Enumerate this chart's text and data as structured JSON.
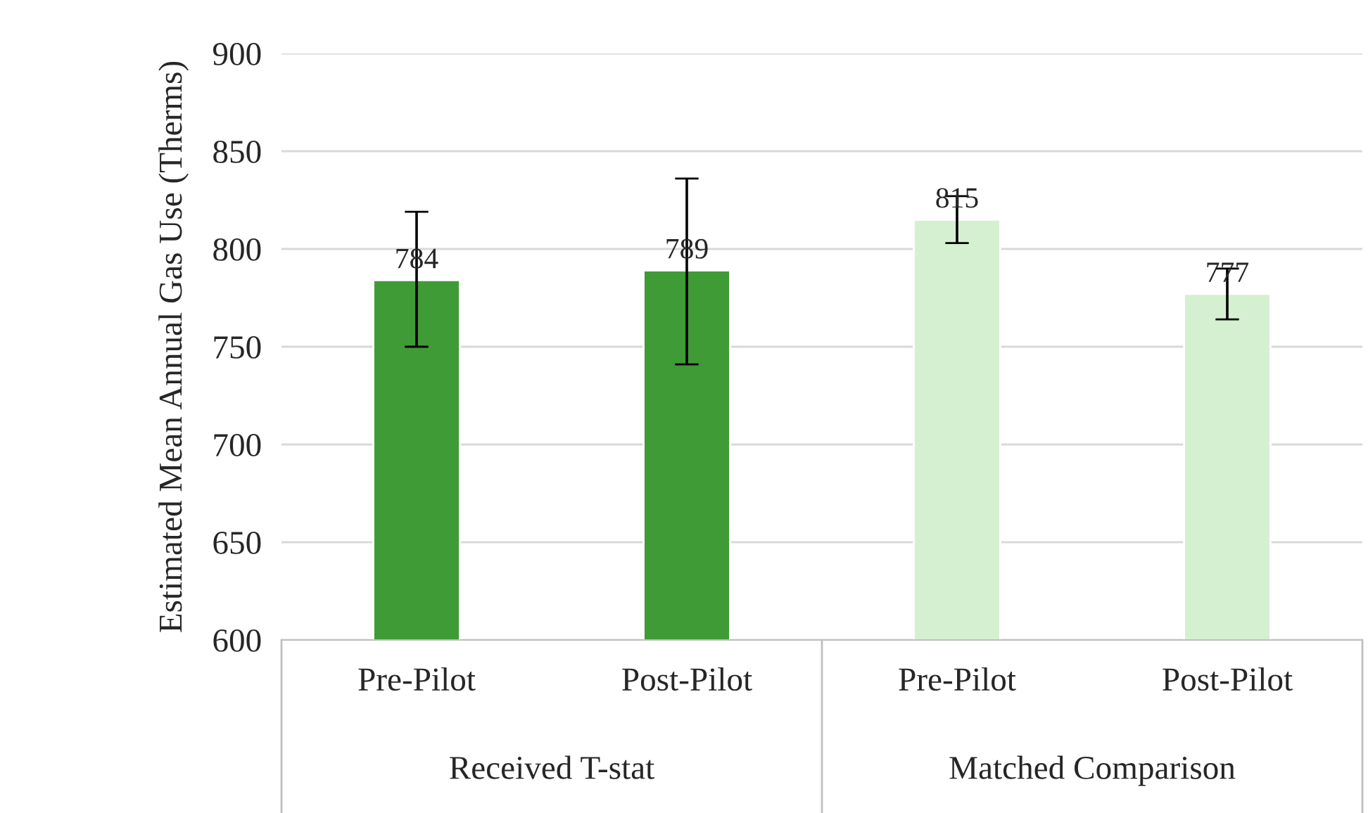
{
  "chart_data": {
    "type": "bar",
    "ylabel": "Estimated Mean Annual Gas Use (Therms)",
    "categories": [
      "Pre-Pilot",
      "Post-Pilot",
      "Pre-Pilot",
      "Post-Pilot"
    ],
    "values": [
      784,
      789,
      815,
      777
    ],
    "colors": [
      "#3f9b35",
      "#3f9b35",
      "#d5f0d0",
      "#d5f0d0"
    ],
    "errors": [
      [
        750,
        819
      ],
      [
        741,
        836
      ],
      [
        803,
        827
      ],
      [
        764,
        790
      ]
    ],
    "annotations": [
      "Received T-stat",
      "Matched Comparison"
    ],
    "ylim": [
      600,
      900
    ],
    "yticks": [
      600,
      650,
      700,
      750,
      800,
      850,
      900
    ],
    "grid": "y",
    "data_labels": true
  }
}
